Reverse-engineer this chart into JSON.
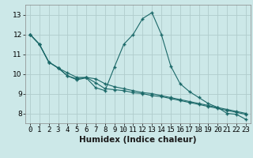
{
  "xlabel": "Humidex (Indice chaleur)",
  "ylabel": "",
  "background_color": "#cce8e8",
  "grid_color": "#b0cccc",
  "line_color": "#1a6868",
  "marker": "+",
  "xlim": [
    -0.5,
    23.5
  ],
  "ylim": [
    7.5,
    13.5
  ],
  "yticks": [
    8,
    9,
    10,
    11,
    12,
    13
  ],
  "xticks": [
    0,
    1,
    2,
    3,
    4,
    5,
    6,
    7,
    8,
    9,
    10,
    11,
    12,
    13,
    14,
    15,
    16,
    17,
    18,
    19,
    20,
    21,
    22,
    23
  ],
  "series1_x": [
    0,
    1,
    2,
    3,
    4,
    5,
    6,
    7,
    8,
    9,
    10,
    11,
    12,
    13,
    14,
    15,
    16,
    17,
    18,
    19,
    20,
    21,
    22,
    23
  ],
  "series1_y": [
    12.0,
    11.5,
    10.6,
    10.3,
    9.9,
    9.7,
    9.8,
    9.3,
    9.15,
    10.35,
    11.5,
    12.0,
    12.8,
    13.1,
    12.0,
    10.4,
    9.5,
    9.1,
    8.8,
    8.5,
    8.3,
    8.0,
    7.95,
    7.7
  ],
  "series2_x": [
    0,
    1,
    2,
    3,
    4,
    5,
    6,
    7,
    8,
    9,
    10,
    11,
    12,
    13,
    14,
    15,
    16,
    17,
    18,
    19,
    20,
    21,
    22,
    23
  ],
  "series2_y": [
    12.0,
    11.5,
    10.6,
    10.3,
    9.9,
    9.75,
    9.82,
    9.55,
    9.25,
    9.2,
    9.15,
    9.05,
    9.0,
    8.9,
    8.85,
    8.75,
    8.65,
    8.55,
    8.45,
    8.35,
    8.25,
    8.15,
    8.05,
    7.95
  ],
  "series3_x": [
    0,
    1,
    2,
    3,
    4,
    5,
    6,
    7,
    8,
    9,
    10,
    11,
    12,
    13,
    14,
    15,
    16,
    17,
    18,
    19,
    20,
    21,
    22,
    23
  ],
  "series3_y": [
    12.0,
    11.5,
    10.6,
    10.3,
    10.05,
    9.82,
    9.82,
    9.75,
    9.5,
    9.35,
    9.25,
    9.15,
    9.05,
    9.0,
    8.9,
    8.8,
    8.7,
    8.6,
    8.5,
    8.4,
    8.3,
    8.2,
    8.1,
    8.0
  ],
  "tick_fontsize": 6.5,
  "xlabel_fontsize": 7.5
}
